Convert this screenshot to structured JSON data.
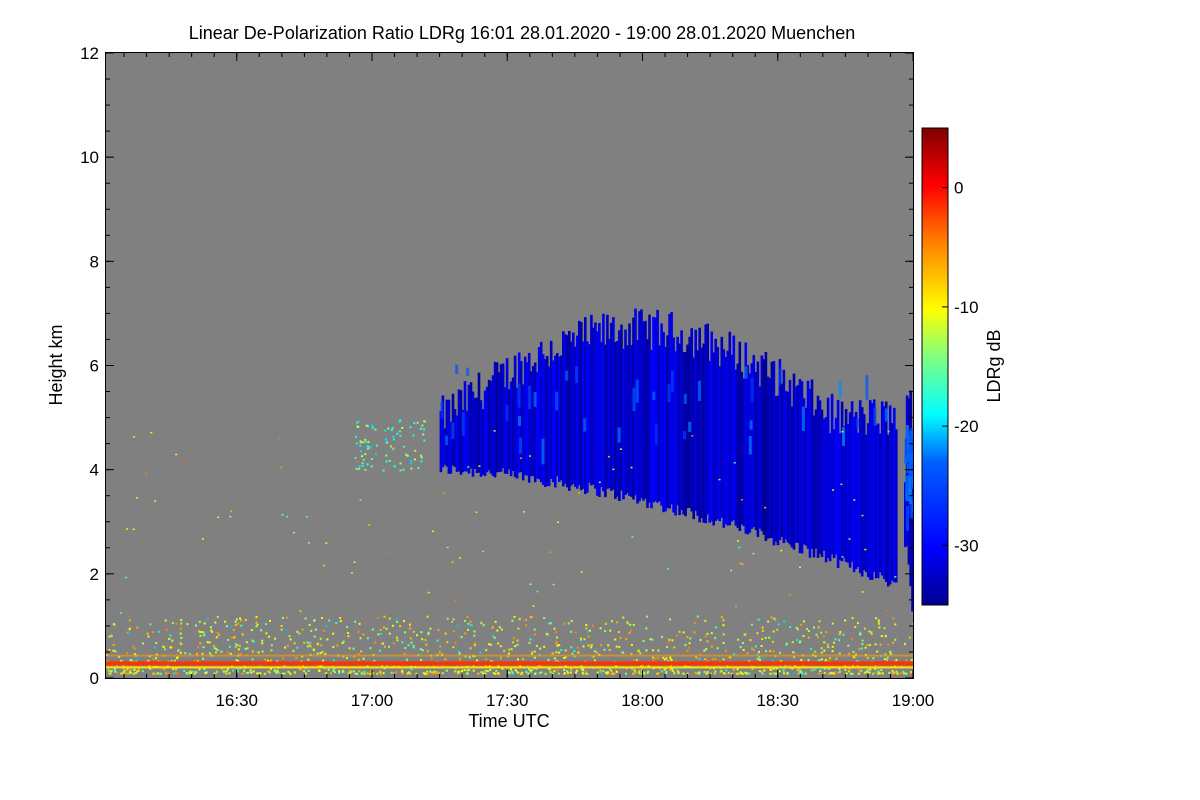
{
  "chart_data": {
    "type": "heatmap",
    "title": "Linear De-Polarization Ratio LDRg   16:01 28.01.2020 - 19:00 28.01.2020 Muenchen",
    "xlabel": "Time UTC",
    "ylabel": "Height km",
    "colorbar_label": "LDRg dB",
    "x_range": [
      "16:01",
      "19:00"
    ],
    "x_ticks": [
      "16:30",
      "17:00",
      "17:30",
      "18:00",
      "18:30",
      "19:00"
    ],
    "y_range": [
      0,
      12
    ],
    "y_ticks": [
      "0",
      "2",
      "4",
      "6",
      "8",
      "10",
      "12"
    ],
    "colorbar_range": [
      -35,
      5
    ],
    "colorbar_ticks": [
      "0",
      "-10",
      "-20",
      "-30"
    ],
    "colormap": "jet",
    "background_color": "#808080",
    "features": [
      {
        "name": "ice cloud (low LDR)",
        "time_start": "17:15",
        "time_end": "18:56",
        "height_base_km": [
          1.8,
          4.0
        ],
        "height_top_km": [
          5.0,
          6.7
        ],
        "ldr_db": -32
      },
      {
        "name": "cloud fragment",
        "time_start": "18:58",
        "time_end": "19:00",
        "height_base_km": [
          0.6,
          2.6
        ],
        "height_top_km": [
          4.0,
          5.6
        ],
        "ldr_db": -32
      },
      {
        "name": "near-ground aerosol layer",
        "height_km": 0.28,
        "ldr_db": -2
      },
      {
        "name": "boundary layer speckle",
        "height_km": [
          0.1,
          1.2
        ],
        "ldr_db": [
          -15,
          -5
        ]
      },
      {
        "name": "isolated layer",
        "time_start": "16:56",
        "time_end": "17:12",
        "height_km": [
          4.0,
          5.0
        ],
        "ldr_db": [
          -22,
          -12
        ]
      }
    ]
  }
}
